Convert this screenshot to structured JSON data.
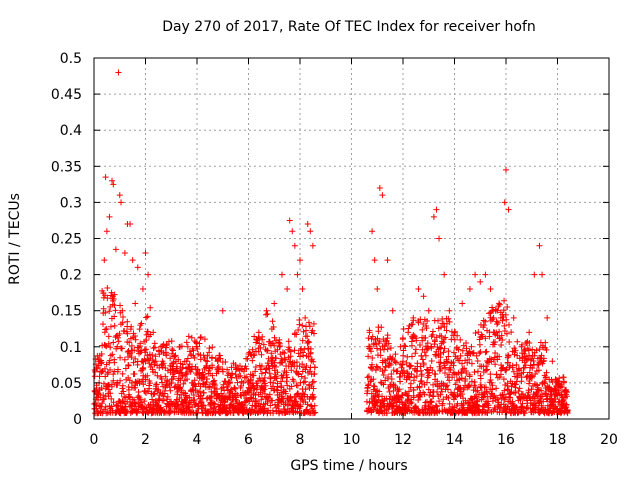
{
  "chart_data": {
    "type": "scatter",
    "title": "Day 270 of 2017, Rate Of TEC Index for receiver hofn",
    "xlabel": "GPS time / hours",
    "ylabel": "ROTI / TECUs",
    "xlim": [
      0,
      20
    ],
    "ylim": [
      0,
      0.5
    ],
    "x_ticks": [
      "0",
      "2",
      "4",
      "6",
      "8",
      "10",
      "12",
      "14",
      "16",
      "18",
      "20"
    ],
    "y_ticks": [
      "0",
      "0.05",
      "0.1",
      "0.15",
      "0.2",
      "0.25",
      "0.3",
      "0.35",
      "0.4",
      "0.45",
      "0.5"
    ],
    "grid": true,
    "marker": "plus",
    "color": "#ff0000",
    "observed_ranges_hours": [
      [
        0,
        8.6
      ],
      [
        10.6,
        18.4
      ]
    ],
    "series": [
      {
        "name": "",
        "x": [
          0.95,
          0.45,
          0.7,
          0.75,
          1.0,
          1.05,
          0.6,
          1.3,
          1.4,
          0.5,
          0.85,
          0.4,
          1.2,
          1.5,
          1.7,
          2.0,
          2.1,
          1.9,
          1.6,
          0.3,
          2.3,
          2.6,
          2.8,
          3.2,
          3.6,
          4.0,
          4.2,
          4.5,
          4.8,
          5.0,
          5.3,
          5.6,
          6.0,
          6.4,
          6.7,
          7.0,
          7.3,
          7.5,
          7.6,
          7.7,
          7.8,
          7.9,
          8.0,
          8.1,
          8.2,
          8.3,
          8.4,
          8.5,
          0.2,
          0.1,
          1.1,
          1.8,
          2.4,
          3.0,
          3.4,
          3.8,
          4.6,
          5.8,
          6.2,
          6.9,
          7.2,
          8.45,
          10.8,
          10.9,
          11.1,
          11.2,
          11.4,
          11.6,
          11.9,
          12.2,
          12.4,
          12.6,
          12.8,
          13.0,
          13.2,
          13.3,
          13.4,
          13.6,
          13.8,
          14.0,
          14.3,
          14.6,
          14.8,
          15.0,
          15.2,
          15.4,
          15.6,
          15.8,
          15.95,
          16.0,
          16.1,
          16.3,
          16.6,
          16.9,
          17.1,
          17.3,
          17.4,
          17.6,
          17.8,
          18.0,
          18.3,
          10.7,
          11.0,
          12.0,
          13.1,
          14.5,
          15.5,
          16.5,
          17.0,
          18.2
        ],
        "y": [
          0.48,
          0.335,
          0.33,
          0.325,
          0.31,
          0.3,
          0.28,
          0.27,
          0.27,
          0.26,
          0.235,
          0.22,
          0.23,
          0.22,
          0.21,
          0.23,
          0.2,
          0.18,
          0.16,
          0.09,
          0.12,
          0.1,
          0.09,
          0.07,
          0.08,
          0.1,
          0.06,
          0.07,
          0.08,
          0.15,
          0.06,
          0.07,
          0.09,
          0.12,
          0.15,
          0.16,
          0.2,
          0.18,
          0.275,
          0.26,
          0.24,
          0.2,
          0.22,
          0.18,
          0.14,
          0.27,
          0.26,
          0.24,
          0.05,
          0.03,
          0.15,
          0.13,
          0.08,
          0.05,
          0.04,
          0.05,
          0.06,
          0.05,
          0.06,
          0.08,
          0.1,
          0.12,
          0.26,
          0.22,
          0.32,
          0.31,
          0.22,
          0.15,
          0.1,
          0.12,
          0.14,
          0.18,
          0.17,
          0.15,
          0.28,
          0.29,
          0.25,
          0.2,
          0.15,
          0.12,
          0.16,
          0.18,
          0.2,
          0.19,
          0.2,
          0.18,
          0.15,
          0.14,
          0.3,
          0.345,
          0.29,
          0.14,
          0.1,
          0.12,
          0.2,
          0.24,
          0.2,
          0.14,
          0.08,
          0.05,
          0.04,
          0.12,
          0.18,
          0.08,
          0.1,
          0.09,
          0.15,
          0.07,
          0.06,
          0.03
        ]
      }
    ]
  }
}
